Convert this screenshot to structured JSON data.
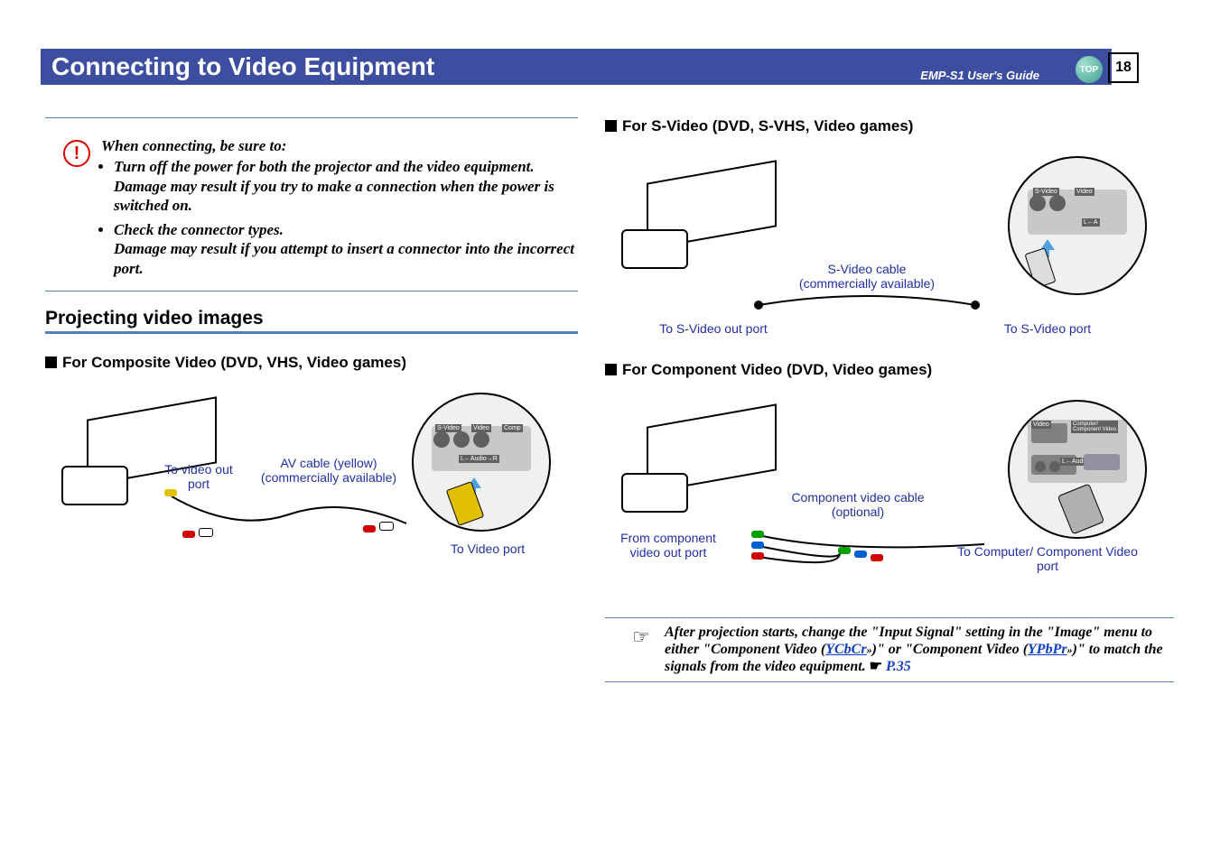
{
  "header": {
    "title": "Connecting to Video Equipment",
    "guide": "EMP-S1 User's Guide",
    "topLabel": "TOP",
    "pageNumber": "18"
  },
  "colors": {
    "headerBar": "#3d4ea0",
    "ruleLine": "#5080c0",
    "labelBlue": "#2030a0",
    "link": "#1040c0",
    "cautionRed": "#e00000",
    "topIconGradStart": "#a0e0d0",
    "topIconGradEnd": "#40a090"
  },
  "caution": {
    "intro": "When connecting, be sure to:",
    "items": [
      "Turn off the power for both the projector and the video equipment.<br>Damage may result if you try to make a connection when the power is switched on.",
      "Check the connector types.<br>Damage may result if you attempt to insert a connector into the incorrect port."
    ]
  },
  "leftSection": {
    "heading": "Projecting video images",
    "subheading": "For Composite Video (DVD, VHS, Video games)",
    "labels": {
      "toVideoOut": "To video out port",
      "cable": "AV cable (yellow)",
      "cableSub": "(commercially available)",
      "toVideoPort": "To Video port"
    }
  },
  "rightSection": {
    "svideo": {
      "subheading": "For S-Video (DVD, S-VHS, Video games)",
      "labels": {
        "cable": "S-Video cable",
        "cableSub": "(commercially available)",
        "toOut": "To S-Video out port",
        "toIn": "To S-Video port"
      }
    },
    "component": {
      "subheading": "For Component Video (DVD, Video games)",
      "labels": {
        "cable": "Component video cable",
        "cableSub": "(optional)",
        "toOut": "From component video out port",
        "toIn": "To Computer/ Component Video port"
      }
    }
  },
  "note": {
    "pre": "After projection starts, change the \"Input Signal\" setting in the \"Image\" menu to either \"Component Video (",
    "link1": "YCbCr",
    "mid": ")\" or \"Component Video (",
    "link2": "YPbPr",
    "post": ")\" to match the signals from the video equipment.",
    "pageRef": "P.35"
  }
}
